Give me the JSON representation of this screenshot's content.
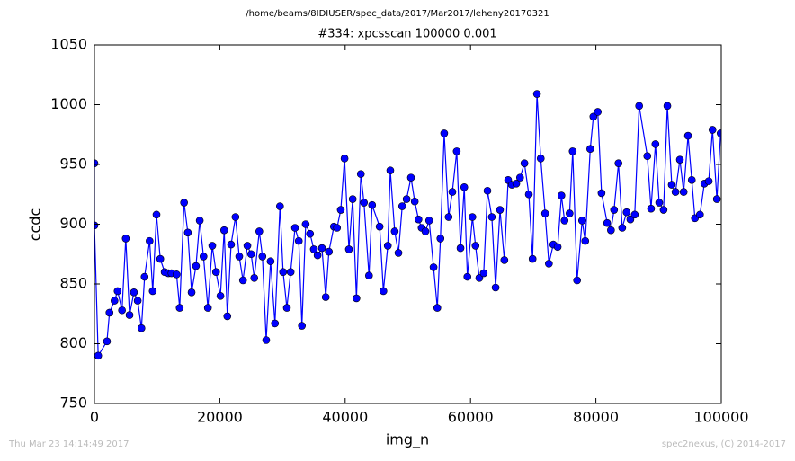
{
  "chart_data": {
    "type": "line",
    "header": "/home/beams/8IDIUSER/spec_data/2017/Mar2017/leheny20170321",
    "title": "#334: xpcsscan 100000 0.001",
    "xlabel": "img_n",
    "ylabel": "ccdc",
    "footer_left": "Thu Mar 23 14:14:49 2017",
    "footer_right": "spec2nexus, (C) 2014-2017",
    "xlim": [
      0,
      100000
    ],
    "ylim": [
      750,
      1050
    ],
    "xticks": [
      0,
      20000,
      40000,
      60000,
      80000,
      100000
    ],
    "yticks": [
      750,
      800,
      850,
      900,
      950,
      1000,
      1050
    ],
    "grid": false,
    "series": [
      {
        "name": "ccdc",
        "color": "#0000ff",
        "x": [
          0,
          0,
          600,
          2000,
          2400,
          3200,
          3700,
          4400,
          5000,
          5600,
          6300,
          6900,
          7500,
          8000,
          8800,
          9300,
          9900,
          10500,
          11200,
          11800,
          12300,
          13100,
          13600,
          14300,
          14900,
          15500,
          16200,
          16800,
          17400,
          18100,
          18800,
          19400,
          20100,
          20700,
          21200,
          21800,
          22500,
          23100,
          23700,
          24400,
          25000,
          25500,
          26300,
          26800,
          27400,
          28100,
          28800,
          29600,
          30100,
          30700,
          31300,
          32000,
          32600,
          33100,
          33700,
          34400,
          35000,
          35600,
          36300,
          36900,
          37400,
          38200,
          38700,
          39300,
          39900,
          40600,
          41200,
          41800,
          42500,
          43000,
          43800,
          44300,
          45500,
          46100,
          46800,
          47200,
          47900,
          48500,
          49100,
          49800,
          50500,
          51100,
          51700,
          52200,
          52800,
          53400,
          54100,
          54700,
          55200,
          55800,
          56500,
          57100,
          57800,
          58400,
          59000,
          59500,
          60300,
          60800,
          61400,
          62100,
          62700,
          63400,
          64000,
          64700,
          65400,
          66000,
          66600,
          67300,
          67900,
          68600,
          69300,
          69900,
          70600,
          71200,
          71900,
          72500,
          73200,
          73900,
          74500,
          75000,
          75800,
          76300,
          77000,
          77800,
          78300,
          79100,
          79600,
          80300,
          80900,
          81800,
          82400,
          82900,
          83600,
          84200,
          84900,
          85500,
          86200,
          86900,
          88200,
          88800,
          89500,
          90100,
          90800,
          91400,
          92100,
          92700,
          93400,
          94000,
          94700,
          95300,
          95800,
          96600,
          97300,
          98000,
          98600,
          99300,
          99900
        ],
        "values": [
          951,
          899,
          790,
          802,
          826,
          836,
          844,
          828,
          888,
          824,
          843,
          836,
          813,
          856,
          886,
          844,
          908,
          871,
          860,
          859,
          859,
          858,
          830,
          918,
          893,
          843,
          865,
          903,
          873,
          830,
          882,
          860,
          840,
          895,
          823,
          883,
          906,
          873,
          853,
          882,
          875,
          855,
          894,
          873,
          803,
          869,
          817,
          915,
          860,
          830,
          860,
          897,
          886,
          815,
          900,
          892,
          879,
          874,
          880,
          839,
          877,
          898,
          897,
          912,
          955,
          879,
          921,
          838,
          942,
          918,
          857,
          916,
          898,
          844,
          882,
          945,
          894,
          876,
          915,
          921,
          939,
          919,
          904,
          897,
          894,
          903,
          864,
          830,
          888,
          976,
          906,
          927,
          961,
          880,
          931,
          856,
          906,
          882,
          855,
          859,
          928,
          906,
          847,
          912,
          870,
          937,
          933,
          934,
          939,
          951,
          925,
          871,
          1009,
          955,
          909,
          867,
          883,
          881,
          924,
          903,
          909,
          961,
          853,
          903,
          886,
          963,
          990,
          994,
          926,
          901,
          895,
          912,
          951,
          897,
          910,
          904,
          908,
          999,
          957,
          913,
          967,
          918,
          912,
          999,
          933,
          927,
          954,
          927,
          974,
          937,
          905,
          908,
          934,
          936,
          979,
          921,
          976
        ]
      }
    ]
  }
}
